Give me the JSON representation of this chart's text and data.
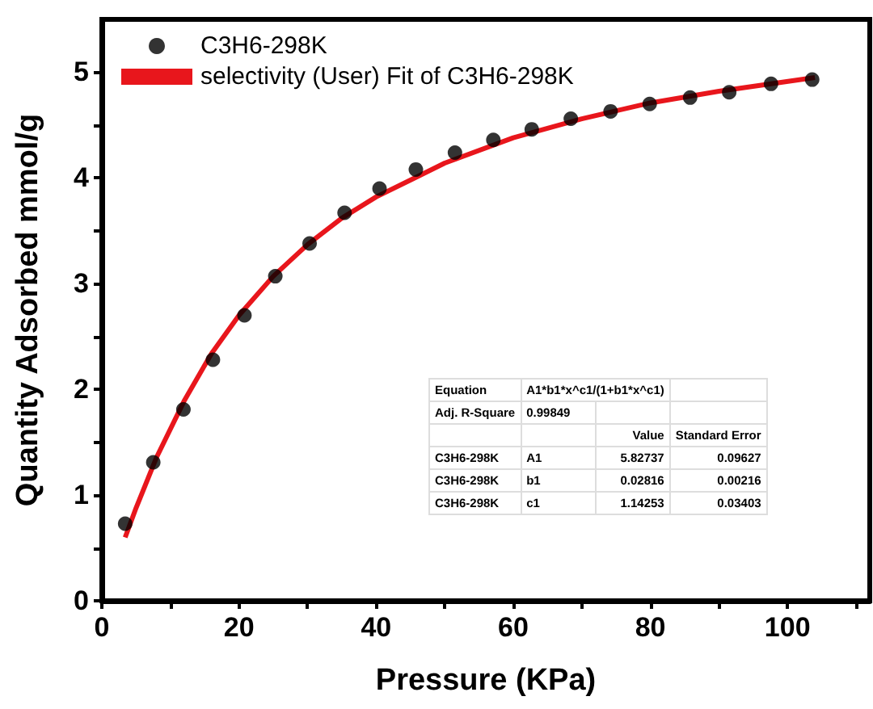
{
  "chart_data": {
    "type": "scatter",
    "xlabel": "Pressure (KPa)",
    "ylabel": "Quantity Adsorbed mmol/g",
    "xlim": [
      0,
      112
    ],
    "ylim": [
      0,
      5.5
    ],
    "xticks": [
      0,
      {
        "value": 10,
        "label": null
      },
      20,
      {
        "value": 30,
        "label": null
      },
      40,
      {
        "value": 50,
        "label": null
      },
      60,
      {
        "value": 70,
        "label": null
      },
      80,
      {
        "value": 90,
        "label": null
      },
      100,
      {
        "value": 110,
        "label": null
      }
    ],
    "yticks": [
      0,
      {
        "value": 0.5,
        "label": null
      },
      1,
      {
        "value": 1.5,
        "label": null
      },
      2,
      {
        "value": 2.5,
        "label": null
      },
      3,
      {
        "value": 3.5,
        "label": null
      },
      4,
      {
        "value": 4.5,
        "label": null
      },
      5
    ],
    "legend": "top left",
    "series": [
      {
        "name": "C3H6-298K",
        "marker": "circle",
        "color": "#000000",
        "x": [
          3.4,
          7.5,
          11.9,
          16.2,
          20.8,
          25.3,
          30.3,
          35.4,
          40.5,
          45.8,
          51.5,
          57.1,
          62.7,
          68.4,
          74.2,
          79.9,
          85.8,
          91.5,
          97.6,
          103.6
        ],
        "values": [
          0.73,
          1.31,
          1.81,
          2.28,
          2.7,
          3.07,
          3.38,
          3.67,
          3.9,
          4.08,
          4.24,
          4.36,
          4.46,
          4.56,
          4.63,
          4.7,
          4.76,
          4.81,
          4.89,
          4.93
        ]
      },
      {
        "type": "line",
        "marker": "none",
        "name": "selectivity (User) Fit of C3H6-298K",
        "color": "#e8161c",
        "x": [
          3.4,
          5,
          8,
          12,
          16,
          20,
          25,
          30,
          35,
          40,
          50,
          60,
          70,
          80,
          90,
          104
        ],
        "values": [
          0.6,
          0.88,
          1.36,
          1.89,
          2.34,
          2.7,
          3.07,
          3.37,
          3.62,
          3.82,
          4.14,
          4.38,
          4.56,
          4.71,
          4.82,
          4.95
        ]
      }
    ],
    "annotations": [
      "Equation",
      "A1*b1*x^c1/(1+b1*x^c1)",
      "Adj. R-Square",
      "0.99849",
      "Value",
      "Standard Error",
      "C3H6-298K",
      "A1",
      "5.82737",
      "0.09627",
      "C3H6-298K",
      "b1",
      "0.02816",
      "0.00216",
      "C3H6-298K",
      "c1",
      "1.14253",
      "0.03403"
    ]
  }
}
